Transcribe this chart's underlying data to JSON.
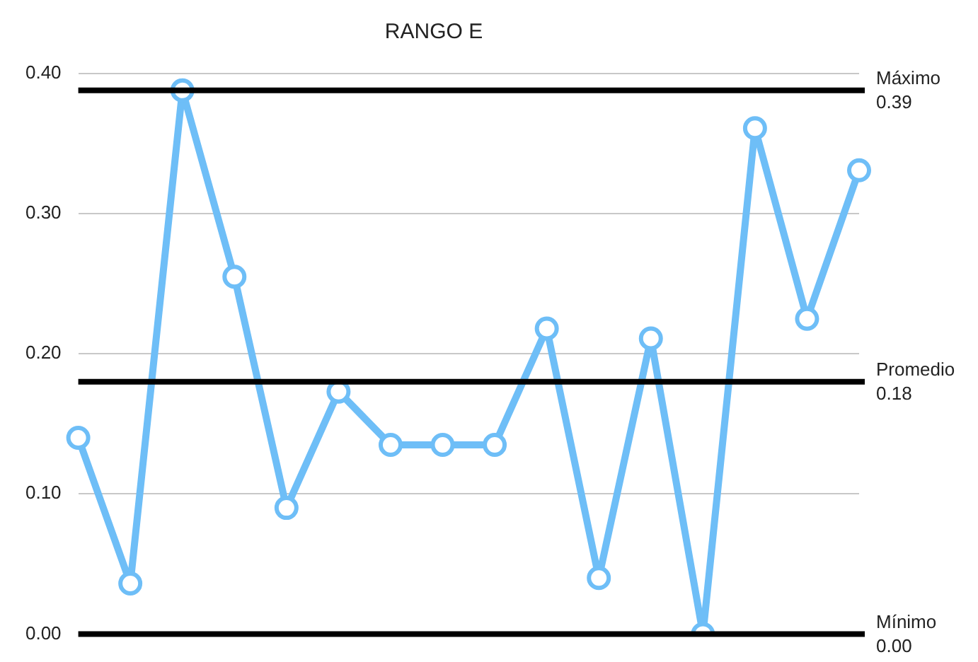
{
  "chart_data": {
    "type": "line",
    "title": "RANGO E",
    "categories": [
      null,
      null,
      null,
      null,
      null,
      null,
      null,
      null,
      null,
      null,
      null,
      null,
      null,
      null,
      null,
      null
    ],
    "series": [
      {
        "color": "#6ebef7",
        "values": [
          0.14,
          0.036,
          0.388,
          0.255,
          0.09,
          0.173,
          0.135,
          0.135,
          0.135,
          0.218,
          0.04,
          0.211,
          0.0,
          0.361,
          0.225,
          0.331
        ]
      }
    ],
    "ylim": [
      0,
      0.4
    ],
    "yticks": [
      {
        "value": 0,
        "label": "0.00"
      },
      {
        "value": 0.1,
        "label": "0.10"
      },
      {
        "value": 0.2,
        "label": "0.20"
      },
      {
        "value": 0.3,
        "label": "0.30"
      },
      {
        "value": 0.4,
        "label": "0.40"
      }
    ],
    "grid": "y",
    "marker": "circle",
    "line_style": "solid",
    "legend": false,
    "tick_labels": "y",
    "ref_lines": [
      {
        "axis": "y",
        "value": 0.388,
        "label": "Máximo\n0.39",
        "color": "#000000"
      },
      {
        "axis": "y",
        "value": 0.18,
        "label": "Promedio\n0.18",
        "color": "#000000"
      },
      {
        "axis": "y",
        "value": 0,
        "label": "Mínimo\n0.00",
        "color": "#000000"
      }
    ]
  }
}
